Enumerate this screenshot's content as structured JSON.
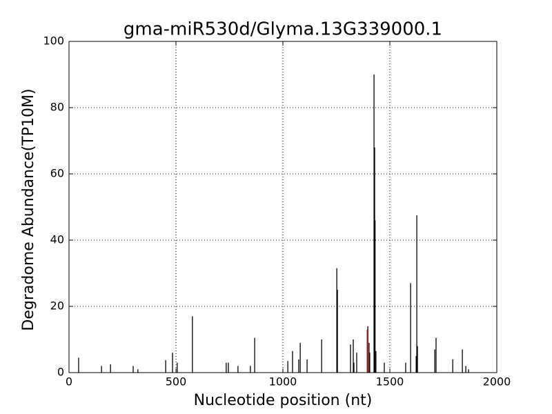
{
  "chart_data": {
    "type": "stem",
    "title": "gma-miR530d/Glyma.13G339000.1",
    "xlabel": "Nucleotide position (nt)",
    "ylabel": "Degradome Abundance(TP10M)",
    "xlim": [
      0,
      2000
    ],
    "xticks": [
      0,
      500,
      1000,
      1500,
      2000
    ],
    "ylim": [
      0,
      100
    ],
    "yticks": [
      0,
      20,
      40,
      60,
      80,
      100
    ],
    "grid": true,
    "series": [
      {
        "color": "#000000",
        "x": [
          45,
          152,
          194,
          300,
          322,
          452,
          484,
          506,
          577,
          735,
          745,
          790,
          848,
          868,
          1023,
          1045,
          1074,
          1081,
          1113,
          1181,
          1252,
          1255,
          1316,
          1329,
          1332,
          1345,
          1397,
          1403,
          1406,
          1426,
          1429,
          1431,
          1435,
          1474,
          1574,
          1597,
          1623,
          1626,
          1629,
          1710,
          1716,
          1794,
          1839,
          1855,
          1868
        ],
        "values": [
          4.5,
          2,
          2.5,
          2,
          1,
          3.8,
          6,
          3,
          17,
          3,
          3,
          2,
          2,
          10.5,
          3.5,
          6.5,
          4,
          9,
          4,
          10,
          31.5,
          25,
          8.5,
          10,
          3,
          6,
          14,
          9,
          6,
          90,
          68,
          46,
          6.5,
          3,
          3,
          27,
          5,
          47.5,
          8,
          7,
          10.5,
          4,
          7,
          2,
          1
        ]
      },
      {
        "color": "#ff0000",
        "x": [
          1394
        ],
        "values": [
          13
        ]
      }
    ]
  }
}
